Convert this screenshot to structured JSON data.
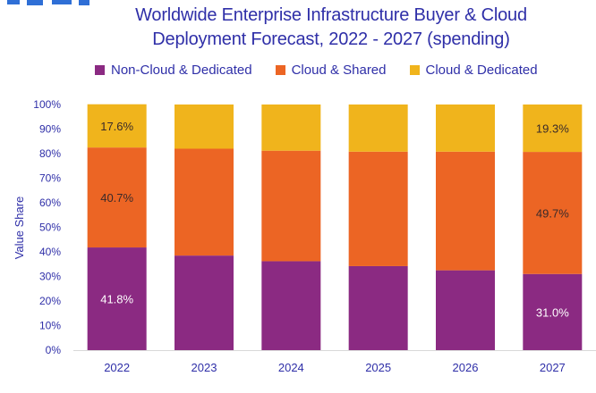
{
  "chart_data": {
    "type": "bar",
    "stacked": true,
    "title_lines": [
      "Worldwide Enterprise Infrastructure Buyer & Cloud",
      "Deployment Forecast, 2022 - 2027 (spending)"
    ],
    "ylabel": "Value  Share",
    "xlabel": "",
    "ylim": [
      0,
      100
    ],
    "yticks": [
      "0%",
      "10%",
      "20%",
      "30%",
      "40%",
      "50%",
      "60%",
      "70%",
      "80%",
      "90%",
      "100%"
    ],
    "categories": [
      "2022",
      "2023",
      "2024",
      "2025",
      "2026",
      "2027"
    ],
    "legend_position": "top",
    "grid": false,
    "series": [
      {
        "name": "Non-Cloud & Dedicated",
        "color": "#8b2a82",
        "values": [
          41.8,
          38.5,
          36.2,
          34.2,
          32.5,
          31.0
        ],
        "labels": [
          "41.8%",
          "",
          "",
          "",
          "",
          "31.0%"
        ],
        "label_color": "#ffffff"
      },
      {
        "name": "Cloud & Shared",
        "color": "#ec6524",
        "values": [
          40.7,
          43.5,
          45.0,
          46.6,
          48.3,
          49.7
        ],
        "labels": [
          "40.7%",
          "",
          "",
          "",
          "",
          "49.7%"
        ],
        "label_color": "#3a2a2a"
      },
      {
        "name": "Cloud & Dedicated",
        "color": "#f0b41c",
        "values": [
          17.6,
          18.0,
          18.8,
          19.2,
          19.2,
          19.3
        ],
        "labels": [
          "17.6%",
          "",
          "",
          "",
          "",
          "19.3%"
        ],
        "label_color": "#3a2a2a"
      }
    ]
  }
}
